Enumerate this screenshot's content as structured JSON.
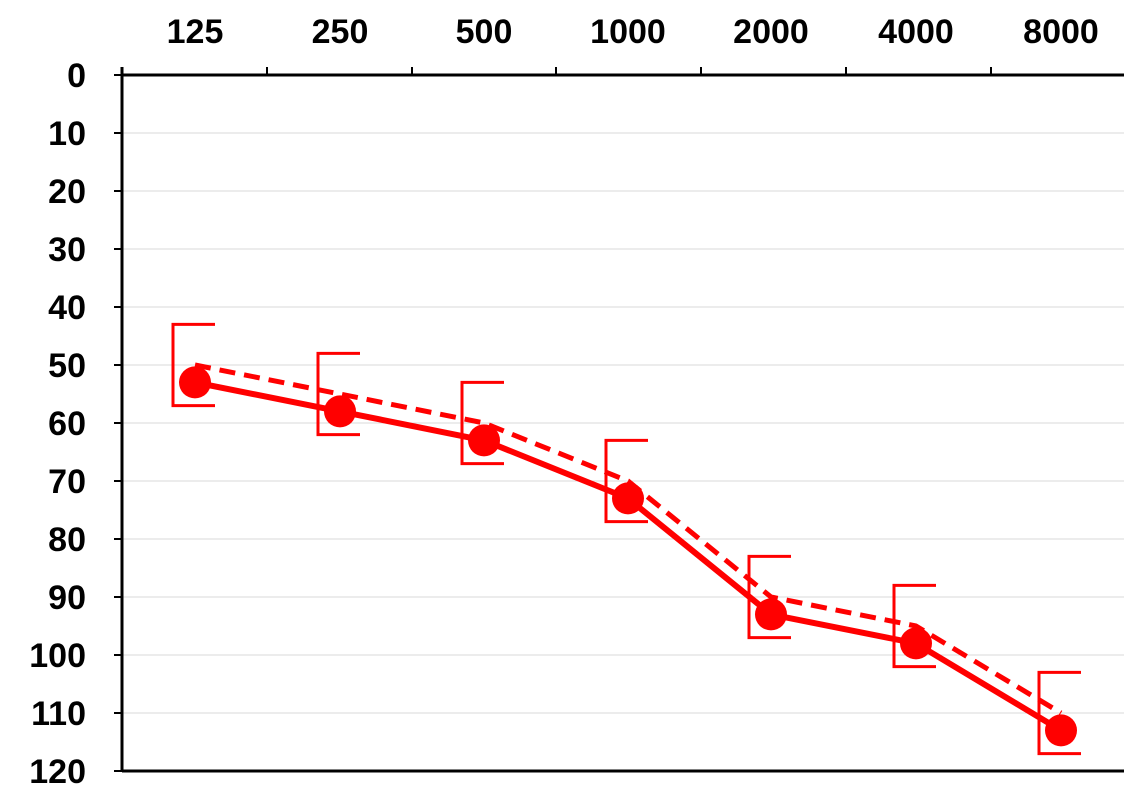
{
  "chart_data": {
    "type": "line",
    "title": "",
    "xlabel": "",
    "ylabel": "",
    "x_categories": [
      "125",
      "250",
      "500",
      "1000",
      "2000",
      "4000",
      "8000"
    ],
    "x_position": "top",
    "ylim": [
      0,
      120
    ],
    "y_inverted": true,
    "y_ticks": [
      "0",
      "10",
      "20",
      "30",
      "40",
      "50",
      "60",
      "70",
      "80",
      "90",
      "100",
      "110",
      "120"
    ],
    "grid": true,
    "legend": "none",
    "series": [
      {
        "style": "solid",
        "marker": "circle",
        "color": "#ff0000",
        "values": [
          53,
          58,
          63,
          73,
          93,
          98,
          113
        ]
      },
      {
        "style": "dashed",
        "marker": "bracket-left",
        "color": "#ff0000",
        "values": [
          50,
          55,
          60,
          70,
          90,
          95,
          110
        ],
        "bracket_top": [
          43,
          48,
          53,
          63,
          83,
          88,
          103
        ],
        "bracket_bottom": [
          57,
          62,
          67,
          77,
          97,
          102,
          117
        ]
      }
    ]
  }
}
